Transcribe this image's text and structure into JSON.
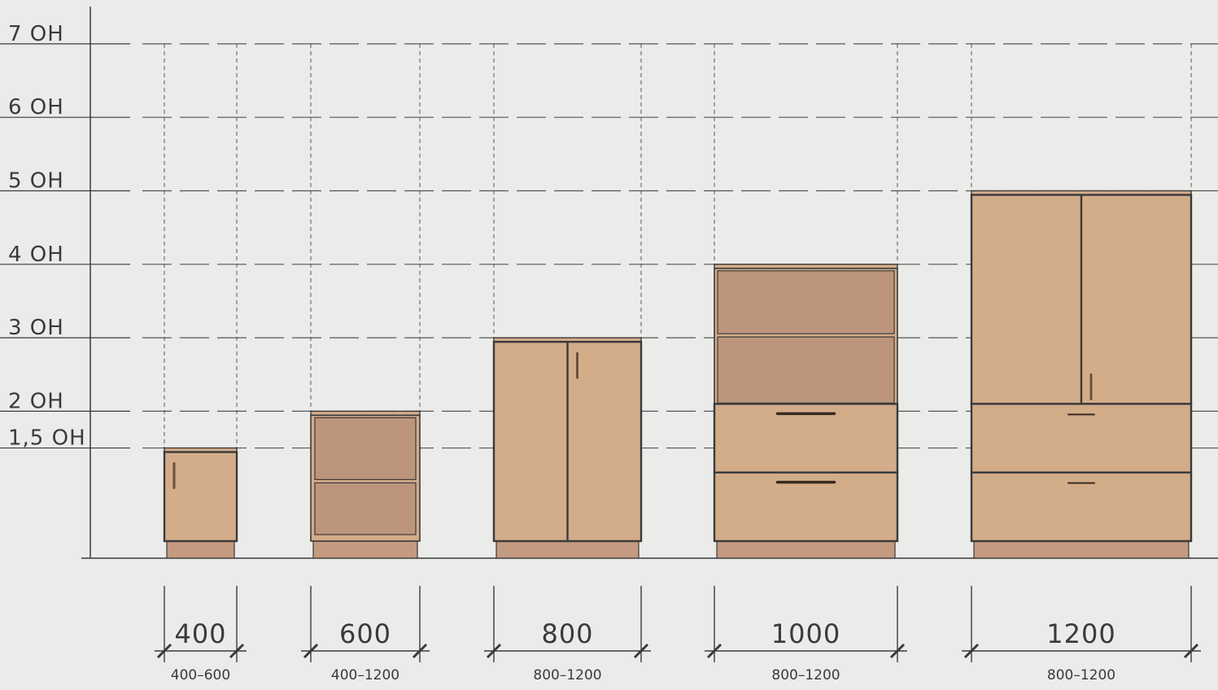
{
  "colors": {
    "background": "#ebebea",
    "line": "#3a3a3a",
    "guide": "#555555",
    "panel": "#d3ac8a",
    "shelf_panel": "#bc957c",
    "plinth": "#c49a80"
  },
  "levels": [
    {
      "id": "7oh",
      "label": "7 OH",
      "value": 7
    },
    {
      "id": "6oh",
      "label": "6 OH",
      "value": 6
    },
    {
      "id": "5oh",
      "label": "5 OH",
      "value": 5
    },
    {
      "id": "4oh",
      "label": "4 OH",
      "value": 4
    },
    {
      "id": "3oh",
      "label": "3 OH",
      "value": 3
    },
    {
      "id": "2oh",
      "label": "2 OH",
      "value": 2
    },
    {
      "id": "15oh",
      "label": "1,5 OH",
      "value": 1.5
    }
  ],
  "cabinets": [
    {
      "id": "c400",
      "width_label": "400",
      "range_label": "400–600",
      "height_oh": 1.5,
      "type": "door-single"
    },
    {
      "id": "c600",
      "width_label": "600",
      "range_label": "400–1200",
      "height_oh": 2,
      "type": "open-shelves"
    },
    {
      "id": "c800",
      "width_label": "800",
      "range_label": "800–1200",
      "height_oh": 3,
      "type": "door-double"
    },
    {
      "id": "c1000",
      "width_label": "1000",
      "range_label": "800–1200",
      "height_oh": 4,
      "type": "shelves-over-drawers"
    },
    {
      "id": "c1200",
      "width_label": "1200",
      "range_label": "800–1200",
      "height_oh": 5,
      "type": "doors-over-drawers"
    }
  ]
}
